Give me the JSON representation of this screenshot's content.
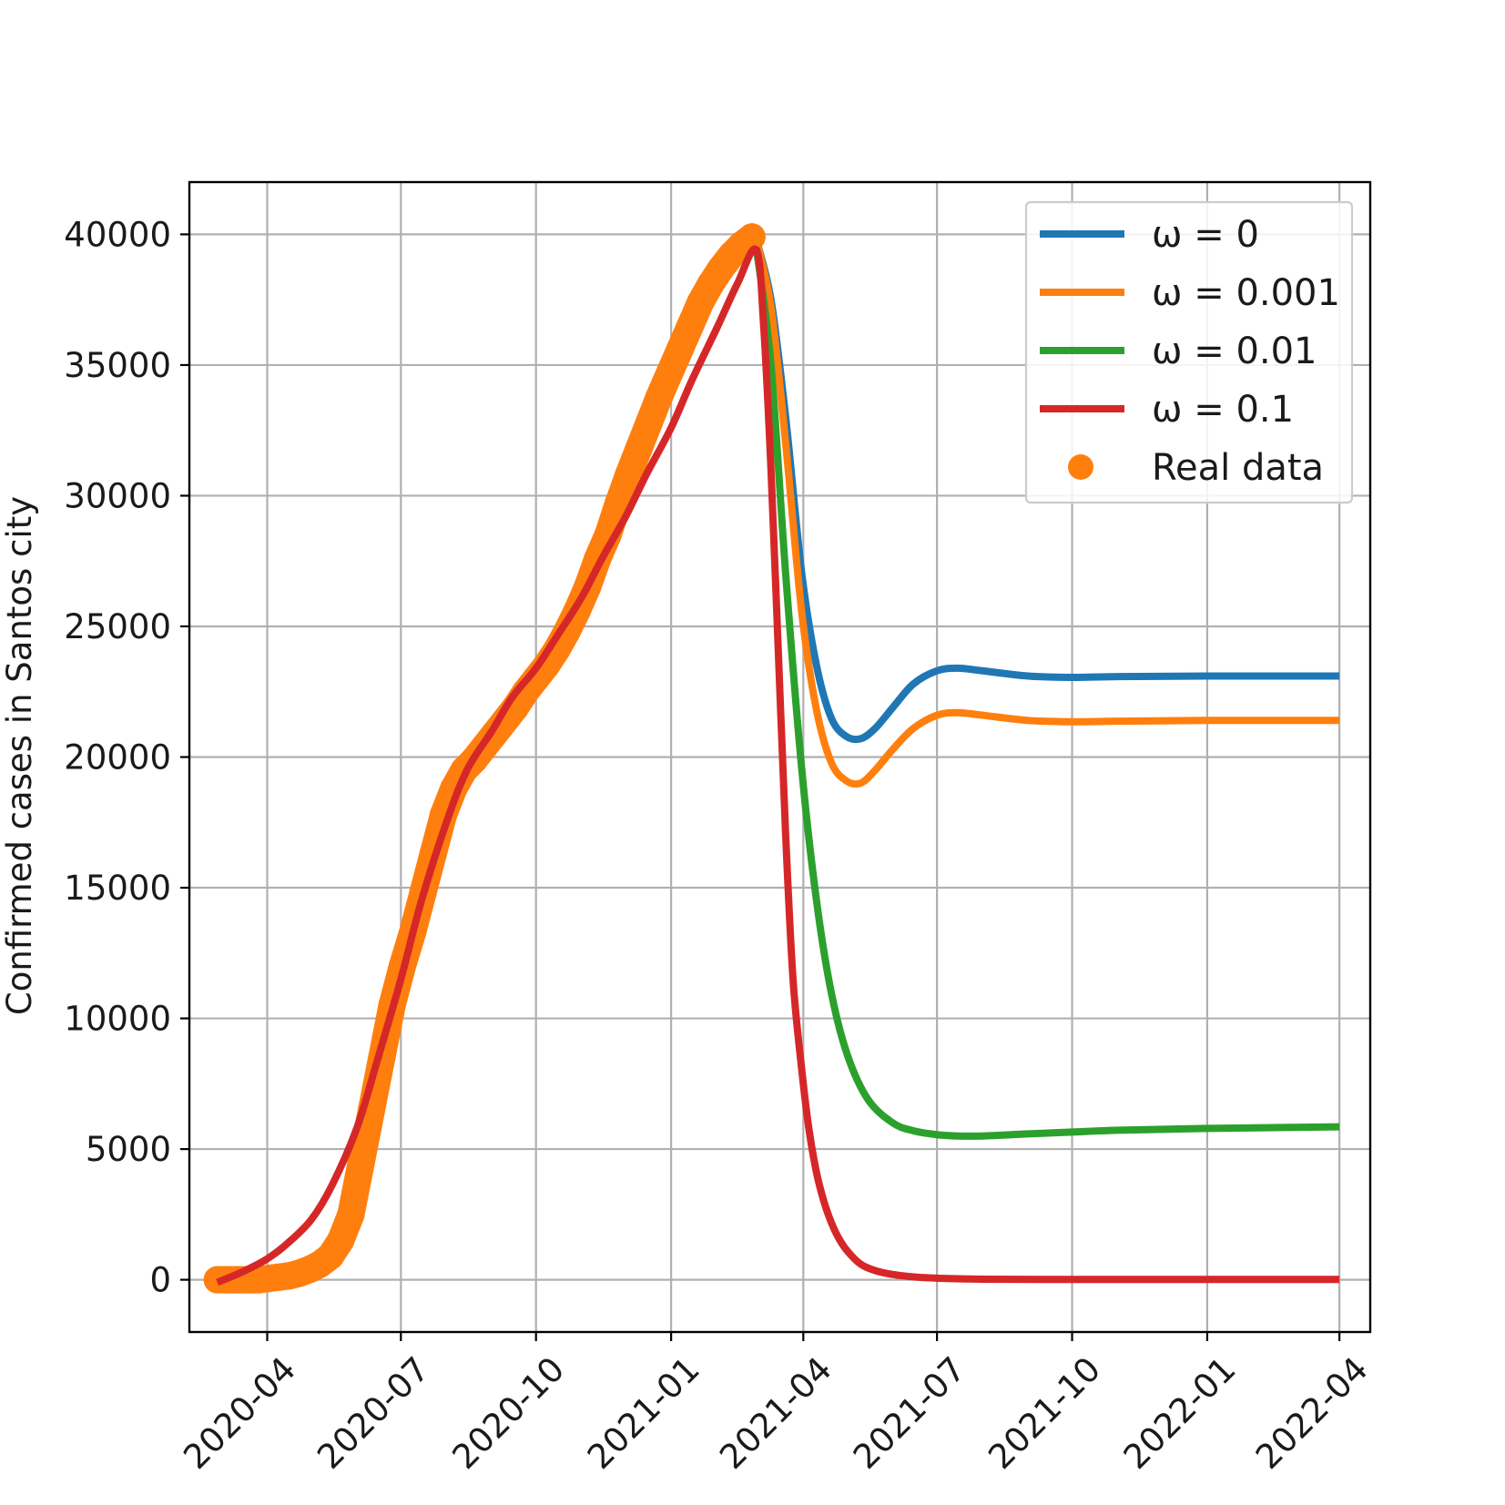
{
  "chart_data": {
    "type": "line",
    "title": "",
    "xlabel": "",
    "ylabel": "Confirmed cases in Santos city",
    "x_type": "date",
    "xlim": [
      "2020-02-08",
      "2022-04-22"
    ],
    "ylim": [
      -2000,
      42000
    ],
    "x_ticks": [
      "2020-04",
      "2020-07",
      "2020-10",
      "2021-01",
      "2021-04",
      "2021-07",
      "2021-10",
      "2022-01",
      "2022-04"
    ],
    "y_ticks": [
      0,
      5000,
      10000,
      15000,
      20000,
      25000,
      30000,
      35000,
      40000
    ],
    "grid": true,
    "legend_position": "top-right",
    "series": [
      {
        "name": "ω = 0",
        "color": "#1f77b4",
        "x": [
          "2021-02-28",
          "2021-03-10",
          "2021-03-20",
          "2021-03-31",
          "2021-04-10",
          "2021-04-20",
          "2021-04-30",
          "2021-05-10",
          "2021-05-20",
          "2021-06-01",
          "2021-06-15",
          "2021-07-01",
          "2021-07-15",
          "2021-08-01",
          "2021-09-01",
          "2021-10-01",
          "2021-11-01",
          "2022-01-01",
          "2022-04-01"
        ],
        "y": [
          39800,
          37500,
          33000,
          27000,
          23500,
          21500,
          20800,
          20700,
          21100,
          21900,
          22800,
          23300,
          23400,
          23300,
          23100,
          23050,
          23080,
          23100,
          23100
        ]
      },
      {
        "name": "ω = 0.001",
        "color": "#ff7f0e",
        "x": [
          "2021-02-28",
          "2021-03-10",
          "2021-03-20",
          "2021-03-31",
          "2021-04-10",
          "2021-04-20",
          "2021-04-30",
          "2021-05-10",
          "2021-05-20",
          "2021-06-01",
          "2021-06-15",
          "2021-07-01",
          "2021-07-15",
          "2021-08-01",
          "2021-09-01",
          "2021-10-01",
          "2021-11-01",
          "2022-01-01",
          "2022-04-01"
        ],
        "y": [
          39800,
          37200,
          32000,
          25500,
          21800,
          19800,
          19100,
          19000,
          19500,
          20300,
          21100,
          21600,
          21700,
          21600,
          21400,
          21350,
          21370,
          21400,
          21400
        ]
      },
      {
        "name": "ω = 0.01",
        "color": "#2ca02c",
        "x": [
          "2021-02-28",
          "2021-03-10",
          "2021-03-20",
          "2021-03-31",
          "2021-04-10",
          "2021-04-20",
          "2021-05-01",
          "2021-05-15",
          "2021-06-01",
          "2021-06-15",
          "2021-07-01",
          "2021-07-15",
          "2021-08-01",
          "2021-09-01",
          "2021-10-01",
          "2021-11-01",
          "2022-01-01",
          "2022-04-01"
        ],
        "y": [
          39500,
          35000,
          27000,
          19500,
          14500,
          11000,
          8600,
          6900,
          6000,
          5700,
          5550,
          5500,
          5500,
          5580,
          5650,
          5720,
          5790,
          5850
        ]
      },
      {
        "name": "ω = 0.1",
        "color": "#d62728",
        "x": [
          "2020-02-27",
          "2020-03-15",
          "2020-04-01",
          "2020-04-15",
          "2020-05-01",
          "2020-05-15",
          "2020-06-01",
          "2020-06-15",
          "2020-07-01",
          "2020-07-15",
          "2020-08-01",
          "2020-08-15",
          "2020-09-01",
          "2020-09-15",
          "2020-10-01",
          "2020-10-15",
          "2020-11-01",
          "2020-11-15",
          "2020-12-01",
          "2020-12-15",
          "2021-01-01",
          "2021-01-15",
          "2021-02-01",
          "2021-02-15",
          "2021-02-28",
          "2021-03-05",
          "2021-03-10",
          "2021-03-15",
          "2021-03-20",
          "2021-03-25",
          "2021-03-31",
          "2021-04-05",
          "2021-04-10",
          "2021-04-15",
          "2021-04-20",
          "2021-04-25",
          "2021-05-01",
          "2021-05-10",
          "2021-05-20",
          "2021-06-01",
          "2021-06-15",
          "2021-07-01",
          "2021-08-01",
          "2021-10-01",
          "2022-01-01",
          "2022-04-01"
        ],
        "y": [
          -100,
          300,
          800,
          1400,
          2300,
          3600,
          5800,
          8400,
          11500,
          14500,
          17500,
          19500,
          21000,
          22300,
          23400,
          24600,
          26100,
          27600,
          29200,
          30800,
          32600,
          34400,
          36400,
          38100,
          39400,
          36500,
          31000,
          24000,
          17000,
          11500,
          8000,
          5700,
          4100,
          3000,
          2200,
          1600,
          1100,
          600,
          350,
          200,
          110,
          60,
          20,
          10,
          10,
          10
        ]
      },
      {
        "name": "Real data",
        "color": "#ff7f0e",
        "marker": "scatter",
        "x": [
          "2020-02-27",
          "2020-03-05",
          "2020-03-12",
          "2020-03-19",
          "2020-03-26",
          "2020-04-02",
          "2020-04-09",
          "2020-04-16",
          "2020-04-23",
          "2020-04-30",
          "2020-05-07",
          "2020-05-14",
          "2020-05-21",
          "2020-05-28",
          "2020-06-04",
          "2020-06-11",
          "2020-06-18",
          "2020-06-25",
          "2020-07-02",
          "2020-07-09",
          "2020-07-16",
          "2020-07-23",
          "2020-07-30",
          "2020-08-06",
          "2020-08-13",
          "2020-08-20",
          "2020-08-27",
          "2020-09-03",
          "2020-09-10",
          "2020-09-17",
          "2020-09-24",
          "2020-10-01",
          "2020-10-08",
          "2020-10-15",
          "2020-10-22",
          "2020-10-29",
          "2020-11-05",
          "2020-11-12",
          "2020-11-19",
          "2020-11-26",
          "2020-12-03",
          "2020-12-10",
          "2020-12-17",
          "2020-12-24",
          "2020-12-31",
          "2021-01-07",
          "2021-01-14",
          "2021-01-21",
          "2021-01-28",
          "2021-02-04",
          "2021-02-11",
          "2021-02-18",
          "2021-02-25"
        ],
        "y": [
          0,
          0,
          0,
          0,
          0,
          50,
          100,
          150,
          250,
          400,
          600,
          900,
          1500,
          2500,
          4500,
          6500,
          8500,
          10500,
          12000,
          13300,
          14800,
          16300,
          17800,
          18800,
          19500,
          19900,
          20400,
          20900,
          21400,
          21900,
          22500,
          23000,
          23500,
          24100,
          24800,
          25600,
          26500,
          27600,
          28500,
          29700,
          30800,
          31800,
          32800,
          33800,
          34700,
          35600,
          36500,
          37400,
          38100,
          38700,
          39200,
          39600,
          39900
        ]
      }
    ]
  }
}
